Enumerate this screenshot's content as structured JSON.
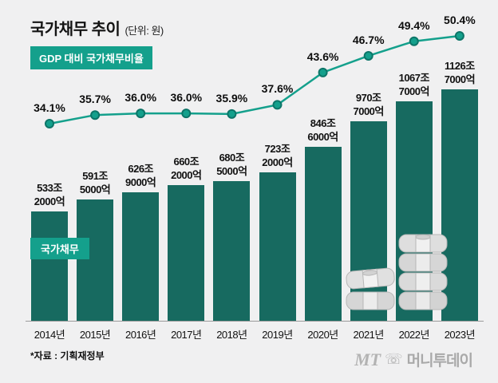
{
  "header": {
    "title": "국가채무 추이",
    "unit": "(단위: 원)",
    "badge": "GDP 대비 국가채무비율"
  },
  "chart_data": {
    "type": "bar",
    "title": "국가채무 추이",
    "unit": "원",
    "categories": [
      "2014년",
      "2015년",
      "2016년",
      "2017년",
      "2018년",
      "2019년",
      "2020년",
      "2021년",
      "2022년",
      "2023년"
    ],
    "series": [
      {
        "name": "국가채무",
        "type": "bar",
        "unit": "조 원",
        "values": [
          533.2,
          591.5,
          626.9,
          660.2,
          680.5,
          723.2,
          846.6,
          970.7,
          1067.7,
          1126.7
        ],
        "labels": [
          [
            "533조",
            "2000억"
          ],
          [
            "591조",
            "5000억"
          ],
          [
            "626조",
            "9000억"
          ],
          [
            "660조",
            "2000억"
          ],
          [
            "680조",
            "5000억"
          ],
          [
            "723조",
            "2000억"
          ],
          [
            "846조",
            "6000억"
          ],
          [
            "970조",
            "7000억"
          ],
          [
            "1067조",
            "7000억"
          ],
          [
            "1126조",
            "7000억"
          ]
        ]
      },
      {
        "name": "GDP 대비 국가채무비율",
        "type": "line",
        "unit": "%",
        "values": [
          34.1,
          35.7,
          36.0,
          36.0,
          35.9,
          37.6,
          43.6,
          46.7,
          49.4,
          50.4
        ],
        "labels": [
          "34.1%",
          "35.7%",
          "36.0%",
          "36.0%",
          "35.9%",
          "37.6%",
          "43.6%",
          "46.7%",
          "49.4%",
          "50.4%"
        ]
      }
    ],
    "bar_badge": "국가채무",
    "bar_ylim": [
      0,
      1200
    ],
    "line_ylim": [
      30,
      52
    ],
    "grid": "off",
    "legend": "none",
    "colors": {
      "bar": "#176a60",
      "line": "#14a08c",
      "dot_fill": "#14a08c",
      "dot_stroke": "#0d7568",
      "badge": "#14a08c",
      "background": "#f0f0f1"
    }
  },
  "footer": {
    "source": "*자료 : 기획재정부",
    "logo_mt": "MT",
    "logo_phone_icon": "phone-icon",
    "logo_text": "머니투데이"
  }
}
